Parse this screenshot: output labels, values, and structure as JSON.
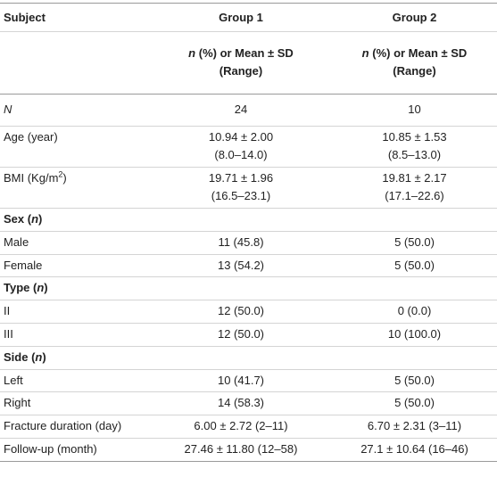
{
  "header": {
    "subject": "Subject",
    "groups": [
      "Group 1",
      "Group 2"
    ],
    "subheader": [
      {
        "italic": "n",
        "rest": " (%) or Mean ± SD",
        "range": "(Range)"
      },
      {
        "italic": "n",
        "rest": " (%) or Mean ± SD",
        "range": "(Range)"
      }
    ]
  },
  "rows": [
    {
      "label": [
        {
          "text": "N",
          "italic": true
        }
      ],
      "cells": [
        [
          "24"
        ],
        [
          "10"
        ]
      ]
    },
    {
      "label": [
        {
          "text": "Age (year)"
        }
      ],
      "cells": [
        [
          "10.94 ± 2.00",
          "(8.0–14.0)"
        ],
        [
          "10.85 ± 1.53",
          "(8.5–13.0)"
        ]
      ]
    },
    {
      "label": [
        {
          "text": "BMI (Kg/m"
        },
        {
          "text": "2",
          "sup": true
        },
        {
          "text": ")"
        }
      ],
      "cells": [
        [
          "19.71 ± 1.96",
          "(16.5–23.1)"
        ],
        [
          "19.81 ± 2.17",
          "(17.1–22.6)"
        ]
      ]
    },
    {
      "label": [
        {
          "text": "Sex (",
          "bold": true
        },
        {
          "text": "n",
          "bold": true,
          "italic": true
        },
        {
          "text": ")",
          "bold": true
        }
      ],
      "cells": []
    },
    {
      "label": [
        {
          "text": "Male"
        }
      ],
      "cells": [
        [
          "11 (45.8)"
        ],
        [
          "5 (50.0)"
        ]
      ]
    },
    {
      "label": [
        {
          "text": "Female"
        }
      ],
      "cells": [
        [
          "13 (54.2)"
        ],
        [
          "5 (50.0)"
        ]
      ]
    },
    {
      "label": [
        {
          "text": "Type (",
          "bold": true
        },
        {
          "text": "n",
          "bold": true,
          "italic": true
        },
        {
          "text": ")",
          "bold": true
        }
      ],
      "cells": []
    },
    {
      "label": [
        {
          "text": "II"
        }
      ],
      "cells": [
        [
          "12 (50.0)"
        ],
        [
          "0 (0.0)"
        ]
      ]
    },
    {
      "label": [
        {
          "text": "III"
        }
      ],
      "cells": [
        [
          "12 (50.0)"
        ],
        [
          "10 (100.0)"
        ]
      ]
    },
    {
      "label": [
        {
          "text": "Side (",
          "bold": true
        },
        {
          "text": "n",
          "bold": true,
          "italic": true
        },
        {
          "text": ")",
          "bold": true
        }
      ],
      "cells": []
    },
    {
      "label": [
        {
          "text": "Left"
        }
      ],
      "cells": [
        [
          "10 (41.7)"
        ],
        [
          "5 (50.0)"
        ]
      ]
    },
    {
      "label": [
        {
          "text": "Right"
        }
      ],
      "cells": [
        [
          "14 (58.3)"
        ],
        [
          "5 (50.0)"
        ]
      ]
    },
    {
      "label": [
        {
          "text": "Fracture duration (day)"
        }
      ],
      "cells": [
        [
          "6.00 ± 2.72 (2–11)"
        ],
        [
          "6.70 ± 2.31 (3–11)"
        ]
      ]
    },
    {
      "label": [
        {
          "text": "Follow-up (month)"
        }
      ],
      "cells": [
        [
          "27.46 ± 11.80 (12–58)"
        ],
        [
          "27.1 ± 10.64 (16–46)"
        ]
      ]
    }
  ]
}
